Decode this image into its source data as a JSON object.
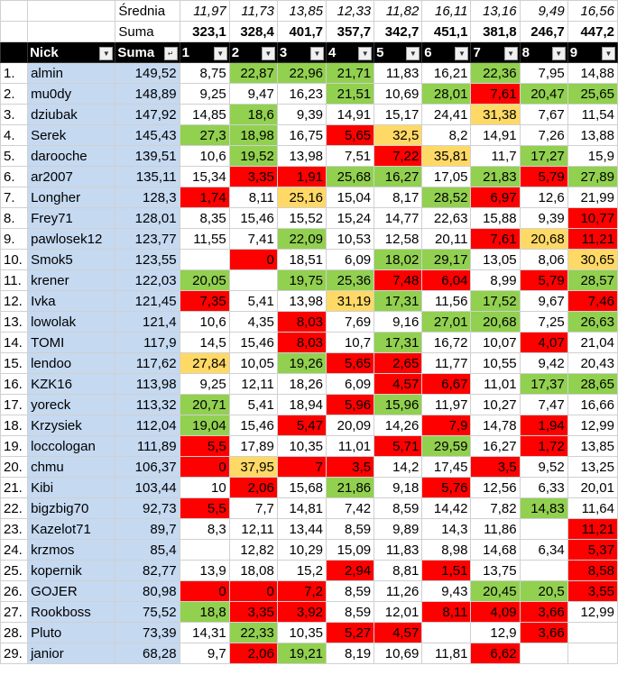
{
  "colors": {
    "green": "#92d050",
    "red": "#ff0000",
    "yellow": "#ffd966",
    "blue": "#c5d9f1",
    "header": "#000000"
  },
  "stats": [
    {
      "label": "Średnia",
      "values": [
        "11,97",
        "11,73",
        "13,85",
        "12,33",
        "11,82",
        "16,11",
        "13,16",
        "9,49",
        "16,56"
      ]
    },
    {
      "label": "Suma",
      "values": [
        "323,1",
        "328,4",
        "401,7",
        "357,7",
        "342,7",
        "451,1",
        "381,8",
        "246,7",
        "447,2"
      ]
    }
  ],
  "header": {
    "nick": "Nick",
    "suma": "Suma",
    "rounds": [
      "1",
      "2",
      "3",
      "4",
      "5",
      "6",
      "7",
      "8",
      "9"
    ],
    "filter_icon": "dropdown-arrow-icon",
    "sort_icon": "sort-descending-icon"
  },
  "rows": [
    {
      "rank": "1.",
      "nick": "almin",
      "suma": "149,52",
      "cells": [
        [
          "8,75",
          ""
        ],
        [
          "22,87",
          "g"
        ],
        [
          "22,96",
          "g"
        ],
        [
          "21,71",
          "g"
        ],
        [
          "11,83",
          ""
        ],
        [
          "16,21",
          ""
        ],
        [
          "22,36",
          "g"
        ],
        [
          "7,95",
          ""
        ],
        [
          "14,88",
          ""
        ]
      ]
    },
    {
      "rank": "2.",
      "nick": "mu0dy",
      "suma": "148,89",
      "cells": [
        [
          "9,25",
          ""
        ],
        [
          "9,47",
          ""
        ],
        [
          "16,23",
          ""
        ],
        [
          "21,51",
          "g"
        ],
        [
          "10,69",
          ""
        ],
        [
          "28,01",
          "g"
        ],
        [
          "7,61",
          "r"
        ],
        [
          "20,47",
          "g"
        ],
        [
          "25,65",
          "g"
        ]
      ]
    },
    {
      "rank": "3.",
      "nick": "dziubak",
      "suma": "147,92",
      "cells": [
        [
          "14,85",
          ""
        ],
        [
          "18,6",
          "g"
        ],
        [
          "9,39",
          ""
        ],
        [
          "14,91",
          ""
        ],
        [
          "15,17",
          ""
        ],
        [
          "24,41",
          ""
        ],
        [
          "31,38",
          "y"
        ],
        [
          "7,67",
          ""
        ],
        [
          "11,54",
          ""
        ]
      ]
    },
    {
      "rank": "4.",
      "nick": "Serek",
      "suma": "145,43",
      "cells": [
        [
          "27,3",
          "g"
        ],
        [
          "18,98",
          "g"
        ],
        [
          "16,75",
          ""
        ],
        [
          "5,65",
          "r"
        ],
        [
          "32,5",
          "y"
        ],
        [
          "8,2",
          ""
        ],
        [
          "14,91",
          ""
        ],
        [
          "7,26",
          ""
        ],
        [
          "13,88",
          ""
        ]
      ]
    },
    {
      "rank": "5.",
      "nick": "darooche",
      "suma": "139,51",
      "cells": [
        [
          "10,6",
          ""
        ],
        [
          "19,52",
          "g"
        ],
        [
          "13,98",
          ""
        ],
        [
          "7,51",
          ""
        ],
        [
          "7,22",
          "r"
        ],
        [
          "35,81",
          "y"
        ],
        [
          "11,7",
          ""
        ],
        [
          "17,27",
          "g"
        ],
        [
          "15,9",
          ""
        ]
      ]
    },
    {
      "rank": "6.",
      "nick": "ar2007",
      "suma": "135,11",
      "cells": [
        [
          "15,34",
          ""
        ],
        [
          "3,35",
          "r"
        ],
        [
          "1,91",
          "r"
        ],
        [
          "25,68",
          "g"
        ],
        [
          "16,27",
          "g"
        ],
        [
          "17,05",
          ""
        ],
        [
          "21,83",
          "g"
        ],
        [
          "5,79",
          "r"
        ],
        [
          "27,89",
          "g"
        ]
      ]
    },
    {
      "rank": "7.",
      "nick": "Longher",
      "suma": "128,3",
      "cells": [
        [
          "1,74",
          "r"
        ],
        [
          "8,11",
          ""
        ],
        [
          "25,16",
          "y"
        ],
        [
          "15,04",
          ""
        ],
        [
          "8,17",
          ""
        ],
        [
          "28,52",
          "g"
        ],
        [
          "6,97",
          "r"
        ],
        [
          "12,6",
          ""
        ],
        [
          "21,99",
          ""
        ]
      ]
    },
    {
      "rank": "8.",
      "nick": "Frey71",
      "suma": "128,01",
      "cells": [
        [
          "8,35",
          ""
        ],
        [
          "15,46",
          ""
        ],
        [
          "15,52",
          ""
        ],
        [
          "15,24",
          ""
        ],
        [
          "14,77",
          ""
        ],
        [
          "22,63",
          ""
        ],
        [
          "15,88",
          ""
        ],
        [
          "9,39",
          ""
        ],
        [
          "10,77",
          "r"
        ]
      ]
    },
    {
      "rank": "9.",
      "nick": "pawlosek12",
      "suma": "123,77",
      "cells": [
        [
          "11,55",
          ""
        ],
        [
          "7,41",
          ""
        ],
        [
          "22,09",
          "g"
        ],
        [
          "10,53",
          ""
        ],
        [
          "12,58",
          ""
        ],
        [
          "20,11",
          ""
        ],
        [
          "7,61",
          "r"
        ],
        [
          "20,68",
          "y"
        ],
        [
          "11,21",
          "r"
        ]
      ]
    },
    {
      "rank": "10.",
      "nick": "Smok5",
      "suma": "123,55",
      "cells": [
        [
          "",
          ""
        ],
        [
          "0",
          "r"
        ],
        [
          "18,51",
          ""
        ],
        [
          "6,09",
          ""
        ],
        [
          "18,02",
          "g"
        ],
        [
          "29,17",
          "g"
        ],
        [
          "13,05",
          ""
        ],
        [
          "8,06",
          ""
        ],
        [
          "30,65",
          "y"
        ]
      ]
    },
    {
      "rank": "11.",
      "nick": "krener",
      "suma": "122,03",
      "cells": [
        [
          "20,05",
          "g"
        ],
        [
          "",
          ""
        ],
        [
          "19,75",
          "g"
        ],
        [
          "25,36",
          "g"
        ],
        [
          "7,48",
          "r"
        ],
        [
          "6,04",
          "r"
        ],
        [
          "8,99",
          ""
        ],
        [
          "5,79",
          "r"
        ],
        [
          "28,57",
          "g"
        ]
      ]
    },
    {
      "rank": "12.",
      "nick": "Ivka",
      "suma": "121,45",
      "cells": [
        [
          "7,35",
          "r"
        ],
        [
          "5,41",
          ""
        ],
        [
          "13,98",
          ""
        ],
        [
          "31,19",
          "y"
        ],
        [
          "17,31",
          "g"
        ],
        [
          "11,56",
          ""
        ],
        [
          "17,52",
          "g"
        ],
        [
          "9,67",
          ""
        ],
        [
          "7,46",
          "r"
        ]
      ]
    },
    {
      "rank": "13.",
      "nick": "lowolak",
      "suma": "121,4",
      "cells": [
        [
          "10,6",
          ""
        ],
        [
          "4,35",
          ""
        ],
        [
          "8,03",
          "r"
        ],
        [
          "7,69",
          ""
        ],
        [
          "9,16",
          ""
        ],
        [
          "27,01",
          "g"
        ],
        [
          "20,68",
          "g"
        ],
        [
          "7,25",
          ""
        ],
        [
          "26,63",
          "g"
        ]
      ]
    },
    {
      "rank": "14.",
      "nick": "TOMI",
      "suma": "117,9",
      "cells": [
        [
          "14,5",
          ""
        ],
        [
          "15,46",
          ""
        ],
        [
          "8,03",
          "r"
        ],
        [
          "10,7",
          ""
        ],
        [
          "17,31",
          "g"
        ],
        [
          "16,72",
          ""
        ],
        [
          "10,07",
          ""
        ],
        [
          "4,07",
          "r"
        ],
        [
          "21,04",
          ""
        ]
      ]
    },
    {
      "rank": "15.",
      "nick": "lendoo",
      "suma": "117,62",
      "cells": [
        [
          "27,84",
          "y"
        ],
        [
          "10,05",
          ""
        ],
        [
          "19,26",
          "g"
        ],
        [
          "5,65",
          "r"
        ],
        [
          "2,65",
          "r"
        ],
        [
          "11,77",
          ""
        ],
        [
          "10,55",
          ""
        ],
        [
          "9,42",
          ""
        ],
        [
          "20,43",
          ""
        ]
      ]
    },
    {
      "rank": "16.",
      "nick": "KZK16",
      "suma": "113,98",
      "cells": [
        [
          "9,25",
          ""
        ],
        [
          "12,11",
          ""
        ],
        [
          "18,26",
          ""
        ],
        [
          "6,09",
          ""
        ],
        [
          "4,57",
          "r"
        ],
        [
          "6,67",
          "r"
        ],
        [
          "11,01",
          ""
        ],
        [
          "17,37",
          "g"
        ],
        [
          "28,65",
          "g"
        ]
      ]
    },
    {
      "rank": "17.",
      "nick": "yoreck",
      "suma": "113,32",
      "cells": [
        [
          "20,71",
          "g"
        ],
        [
          "5,41",
          ""
        ],
        [
          "18,94",
          ""
        ],
        [
          "5,96",
          "r"
        ],
        [
          "15,96",
          "g"
        ],
        [
          "11,97",
          ""
        ],
        [
          "10,27",
          ""
        ],
        [
          "7,47",
          ""
        ],
        [
          "16,66",
          ""
        ]
      ]
    },
    {
      "rank": "18.",
      "nick": "Krzysiek",
      "suma": "112,04",
      "cells": [
        [
          "19,04",
          "g"
        ],
        [
          "15,46",
          ""
        ],
        [
          "5,47",
          "r"
        ],
        [
          "20,09",
          ""
        ],
        [
          "14,26",
          ""
        ],
        [
          "7,9",
          "r"
        ],
        [
          "14,78",
          ""
        ],
        [
          "1,94",
          "r"
        ],
        [
          "12,99",
          ""
        ]
      ]
    },
    {
      "rank": "19.",
      "nick": "loccologan",
      "suma": "111,89",
      "cells": [
        [
          "5,5",
          "r"
        ],
        [
          "17,89",
          ""
        ],
        [
          "10,35",
          ""
        ],
        [
          "11,01",
          ""
        ],
        [
          "5,71",
          "r"
        ],
        [
          "29,59",
          "g"
        ],
        [
          "16,27",
          ""
        ],
        [
          "1,72",
          "r"
        ],
        [
          "13,85",
          ""
        ]
      ]
    },
    {
      "rank": "20.",
      "nick": "chmu",
      "suma": "106,37",
      "cells": [
        [
          "0",
          "r"
        ],
        [
          "37,95",
          "y"
        ],
        [
          "7",
          "r"
        ],
        [
          "3,5",
          "r"
        ],
        [
          "14,2",
          ""
        ],
        [
          "17,45",
          ""
        ],
        [
          "3,5",
          "r"
        ],
        [
          "9,52",
          ""
        ],
        [
          "13,25",
          ""
        ]
      ]
    },
    {
      "rank": "21.",
      "nick": "Kibi",
      "suma": "103,44",
      "cells": [
        [
          "10",
          ""
        ],
        [
          "2,06",
          "r"
        ],
        [
          "15,68",
          ""
        ],
        [
          "21,86",
          "g"
        ],
        [
          "9,18",
          ""
        ],
        [
          "5,76",
          "r"
        ],
        [
          "12,56",
          ""
        ],
        [
          "6,33",
          ""
        ],
        [
          "20,01",
          ""
        ]
      ]
    },
    {
      "rank": "22.",
      "nick": "bigzbig70",
      "suma": "92,73",
      "cells": [
        [
          "5,5",
          "r"
        ],
        [
          "7,7",
          ""
        ],
        [
          "14,81",
          ""
        ],
        [
          "7,42",
          ""
        ],
        [
          "8,59",
          ""
        ],
        [
          "14,42",
          ""
        ],
        [
          "7,82",
          ""
        ],
        [
          "14,83",
          "g"
        ],
        [
          "11,64",
          ""
        ]
      ]
    },
    {
      "rank": "23.",
      "nick": "Kazelot71",
      "suma": "89,7",
      "cells": [
        [
          "8,3",
          ""
        ],
        [
          "12,11",
          ""
        ],
        [
          "13,44",
          ""
        ],
        [
          "8,59",
          ""
        ],
        [
          "9,89",
          ""
        ],
        [
          "14,3",
          ""
        ],
        [
          "11,86",
          ""
        ],
        [
          "",
          ""
        ],
        [
          "11,21",
          "r"
        ]
      ]
    },
    {
      "rank": "24.",
      "nick": "krzmos",
      "suma": "85,4",
      "cells": [
        [
          "",
          ""
        ],
        [
          "12,82",
          ""
        ],
        [
          "10,29",
          ""
        ],
        [
          "15,09",
          ""
        ],
        [
          "11,83",
          ""
        ],
        [
          "8,98",
          ""
        ],
        [
          "14,68",
          ""
        ],
        [
          "6,34",
          ""
        ],
        [
          "5,37",
          "r"
        ]
      ]
    },
    {
      "rank": "25.",
      "nick": "kopernik",
      "suma": "82,77",
      "cells": [
        [
          "13,9",
          ""
        ],
        [
          "18,08",
          ""
        ],
        [
          "15,2",
          ""
        ],
        [
          "2,94",
          "r"
        ],
        [
          "8,81",
          ""
        ],
        [
          "1,51",
          "r"
        ],
        [
          "13,75",
          ""
        ],
        [
          "",
          ""
        ],
        [
          "8,58",
          "r"
        ]
      ]
    },
    {
      "rank": "26.",
      "nick": "GOJER",
      "suma": "80,98",
      "cells": [
        [
          "0",
          "r"
        ],
        [
          "0",
          "r"
        ],
        [
          "7,2",
          "r"
        ],
        [
          "8,59",
          ""
        ],
        [
          "11,26",
          ""
        ],
        [
          "9,43",
          ""
        ],
        [
          "20,45",
          "g"
        ],
        [
          "20,5",
          "g"
        ],
        [
          "3,55",
          "r"
        ]
      ]
    },
    {
      "rank": "27.",
      "nick": "Rookboss",
      "suma": "75,52",
      "cells": [
        [
          "18,8",
          "g"
        ],
        [
          "3,35",
          "r"
        ],
        [
          "3,92",
          "r"
        ],
        [
          "8,59",
          ""
        ],
        [
          "12,01",
          ""
        ],
        [
          "8,11",
          "r"
        ],
        [
          "4,09",
          "r"
        ],
        [
          "3,66",
          "r"
        ],
        [
          "12,99",
          ""
        ]
      ]
    },
    {
      "rank": "28.",
      "nick": "Pluto",
      "suma": "73,39",
      "cells": [
        [
          "14,31",
          ""
        ],
        [
          "22,33",
          "g"
        ],
        [
          "10,35",
          ""
        ],
        [
          "5,27",
          "r"
        ],
        [
          "4,57",
          "r"
        ],
        [
          "",
          ""
        ],
        [
          "12,9",
          ""
        ],
        [
          "3,66",
          "r"
        ],
        [
          "",
          ""
        ]
      ]
    },
    {
      "rank": "29.",
      "nick": "janior",
      "suma": "68,28",
      "cells": [
        [
          "9,7",
          ""
        ],
        [
          "2,06",
          "r"
        ],
        [
          "19,21",
          "g"
        ],
        [
          "8,19",
          ""
        ],
        [
          "10,69",
          ""
        ],
        [
          "11,81",
          ""
        ],
        [
          "6,62",
          "r"
        ],
        [
          "",
          ""
        ],
        [
          "",
          ""
        ]
      ]
    }
  ]
}
